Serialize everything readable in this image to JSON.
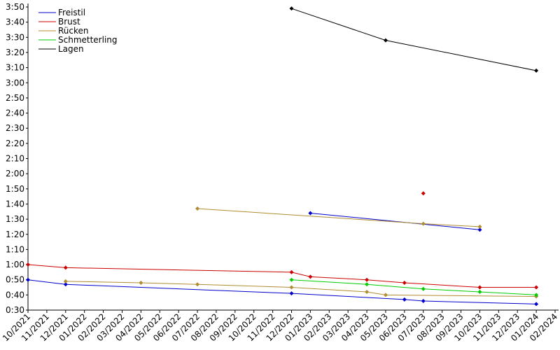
{
  "chart_data": {
    "type": "line",
    "categories": [
      "10/2021",
      "11/2021",
      "12/2021",
      "01/2022",
      "02/2022",
      "03/2022",
      "04/2022",
      "05/2022",
      "06/2022",
      "07/2022",
      "08/2022",
      "09/2022",
      "10/2022",
      "11/2022",
      "12/2022",
      "01/2023",
      "02/2023",
      "03/2023",
      "04/2023",
      "05/2023",
      "06/2023",
      "07/2023",
      "08/2023",
      "09/2023",
      "10/2023",
      "11/2023",
      "12/2023",
      "01/2024",
      "02/2024"
    ],
    "ylim": [
      30,
      230
    ],
    "yticks": [
      {
        "value": 30,
        "label": "0:30"
      },
      {
        "value": 40,
        "label": "0:40"
      },
      {
        "value": 50,
        "label": "0:50"
      },
      {
        "value": 60,
        "label": "1:00"
      },
      {
        "value": 70,
        "label": "1:10"
      },
      {
        "value": 80,
        "label": "1:20"
      },
      {
        "value": 90,
        "label": "1:30"
      },
      {
        "value": 100,
        "label": "1:40"
      },
      {
        "value": 110,
        "label": "1:50"
      },
      {
        "value": 120,
        "label": "2:00"
      },
      {
        "value": 130,
        "label": "2:10"
      },
      {
        "value": 140,
        "label": "2:20"
      },
      {
        "value": 150,
        "label": "2:30"
      },
      {
        "value": 160,
        "label": "2:40"
      },
      {
        "value": 170,
        "label": "2:50"
      },
      {
        "value": 180,
        "label": "3:00"
      },
      {
        "value": 190,
        "label": "3:10"
      },
      {
        "value": 200,
        "label": "3:20"
      },
      {
        "value": 210,
        "label": "3:30"
      },
      {
        "value": 220,
        "label": "3:40"
      },
      {
        "value": 230,
        "label": "3:50"
      }
    ],
    "legend": "upper left",
    "series": [
      {
        "name": "Freistil",
        "color": "#0000cc",
        "x": [
          "10/2021",
          "12/2021",
          "12/2022",
          "06/2023",
          "07/2023",
          "01/2024",
          null,
          "01/2023",
          "10/2023"
        ],
        "values": [
          50,
          47,
          41,
          37,
          36,
          34,
          null,
          94,
          83
        ]
      },
      {
        "name": "Brust",
        "color": "#cc0000",
        "x": [
          "10/2021",
          "12/2021",
          "12/2022",
          "01/2023",
          "04/2023",
          "06/2023",
          "10/2023",
          "01/2024",
          null,
          "07/2023"
        ],
        "values": [
          60,
          58,
          55,
          52,
          50,
          48,
          45,
          45,
          null,
          107
        ]
      },
      {
        "name": "Rücken",
        "color": "#b08c30",
        "x": [
          "12/2021",
          "04/2022",
          "07/2022",
          "12/2022",
          "04/2023",
          "05/2023",
          "01/2024",
          null,
          "07/2022",
          "07/2023",
          "10/2023"
        ],
        "values": [
          49,
          48,
          47,
          45,
          42,
          40,
          39,
          null,
          97,
          87,
          85
        ]
      },
      {
        "name": "Schmetterling",
        "color": "#00cc00",
        "x": [
          "12/2022",
          "04/2023",
          "07/2023",
          "10/2023",
          "01/2024"
        ],
        "values": [
          50,
          47,
          44,
          42,
          40
        ]
      },
      {
        "name": "Lagen",
        "color": "#000000",
        "x": [
          "12/2022",
          "05/2023",
          "01/2024"
        ],
        "values": [
          229,
          208,
          188
        ]
      }
    ]
  }
}
